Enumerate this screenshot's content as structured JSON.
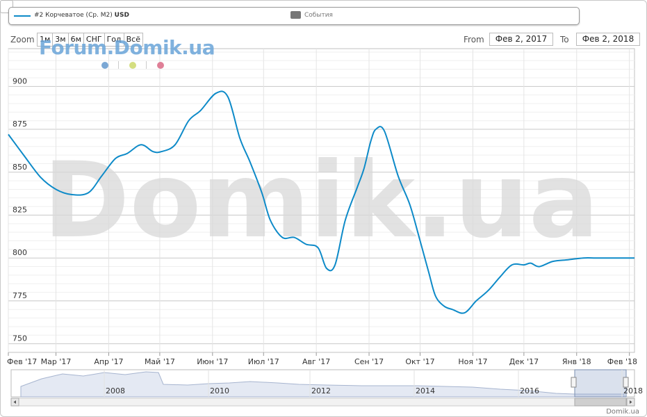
{
  "legend": {
    "series_label": "#2 Корчеватое (Ср. М2)",
    "series_unit": "USD",
    "events_label": "События"
  },
  "zoom": {
    "label": "Zoom",
    "buttons": [
      "1м",
      "3м",
      "6м",
      "СНГ",
      "Год",
      "Всё"
    ]
  },
  "range": {
    "from_label": "From",
    "from_value": "Фев 2, 2017",
    "to_label": "To",
    "to_value": "Фев 2, 2018"
  },
  "watermark": {
    "small": "Forum.Domik.ua",
    "big": "Domik.ua"
  },
  "credit": "Domik.ua",
  "colors": {
    "series": "#0d8ac8",
    "dot_blue": "#7aa7d4",
    "dot_yellow": "#d4de80",
    "dot_pink": "#df7f97"
  },
  "chart_data": {
    "type": "line",
    "series": [
      {
        "name": "#2 Корчеватое (Ср. М2)",
        "x": [
          "2017-02-01",
          "2017-02-10",
          "2017-02-20",
          "2017-03-01",
          "2017-03-10",
          "2017-03-20",
          "2017-03-28",
          "2017-04-05",
          "2017-04-12",
          "2017-04-20",
          "2017-04-27",
          "2017-05-02",
          "2017-05-10",
          "2017-05-18",
          "2017-05-25",
          "2017-06-03",
          "2017-06-10",
          "2017-06-17",
          "2017-06-23",
          "2017-06-30",
          "2017-07-05",
          "2017-07-12",
          "2017-07-19",
          "2017-07-26",
          "2017-08-02",
          "2017-08-07",
          "2017-08-12",
          "2017-08-18",
          "2017-08-25",
          "2017-08-29",
          "2017-09-02",
          "2017-09-05",
          "2017-09-10",
          "2017-09-18",
          "2017-09-25",
          "2017-10-01",
          "2017-10-06",
          "2017-10-10",
          "2017-10-15",
          "2017-10-20",
          "2017-10-27",
          "2017-11-03",
          "2017-11-10",
          "2017-11-17",
          "2017-11-24",
          "2017-12-01",
          "2017-12-05",
          "2017-12-10",
          "2017-12-18",
          "2017-12-27",
          "2018-01-05",
          "2018-01-12",
          "2018-01-20",
          "2018-01-27",
          "2018-02-01",
          "2018-02-04"
        ],
        "values": [
          872,
          860,
          847,
          840,
          837,
          838,
          848,
          858,
          861,
          866,
          862,
          862,
          866,
          880,
          886,
          896,
          894,
          870,
          856,
          838,
          822,
          812,
          812,
          808,
          806,
          794,
          796,
          822,
          841,
          852,
          868,
          875,
          874,
          848,
          831,
          810,
          792,
          778,
          772,
          770,
          768,
          775,
          781,
          789,
          796,
          796,
          797,
          795,
          798,
          799,
          800,
          800,
          800,
          800,
          800,
          800
        ]
      }
    ],
    "x_tick_labels": [
      "Фев '17",
      "Мар '17",
      "Апр '17",
      "Май '17",
      "Июн '17",
      "Июл '17",
      "Авг '17",
      "Сен '17",
      "Окт '17",
      "Ноя '17",
      "Дек '17",
      "Янв '18",
      "Фев '18"
    ],
    "y_tick_labels": [
      "750",
      "775",
      "800",
      "825",
      "850",
      "875",
      "900"
    ],
    "ylim": [
      745,
      922
    ],
    "xlim": [
      "2017-02-01",
      "2018-02-04"
    ],
    "grid": true,
    "navigator_labels": [
      "2008",
      "2010",
      "2012",
      "2014",
      "2016",
      "2018"
    ]
  }
}
